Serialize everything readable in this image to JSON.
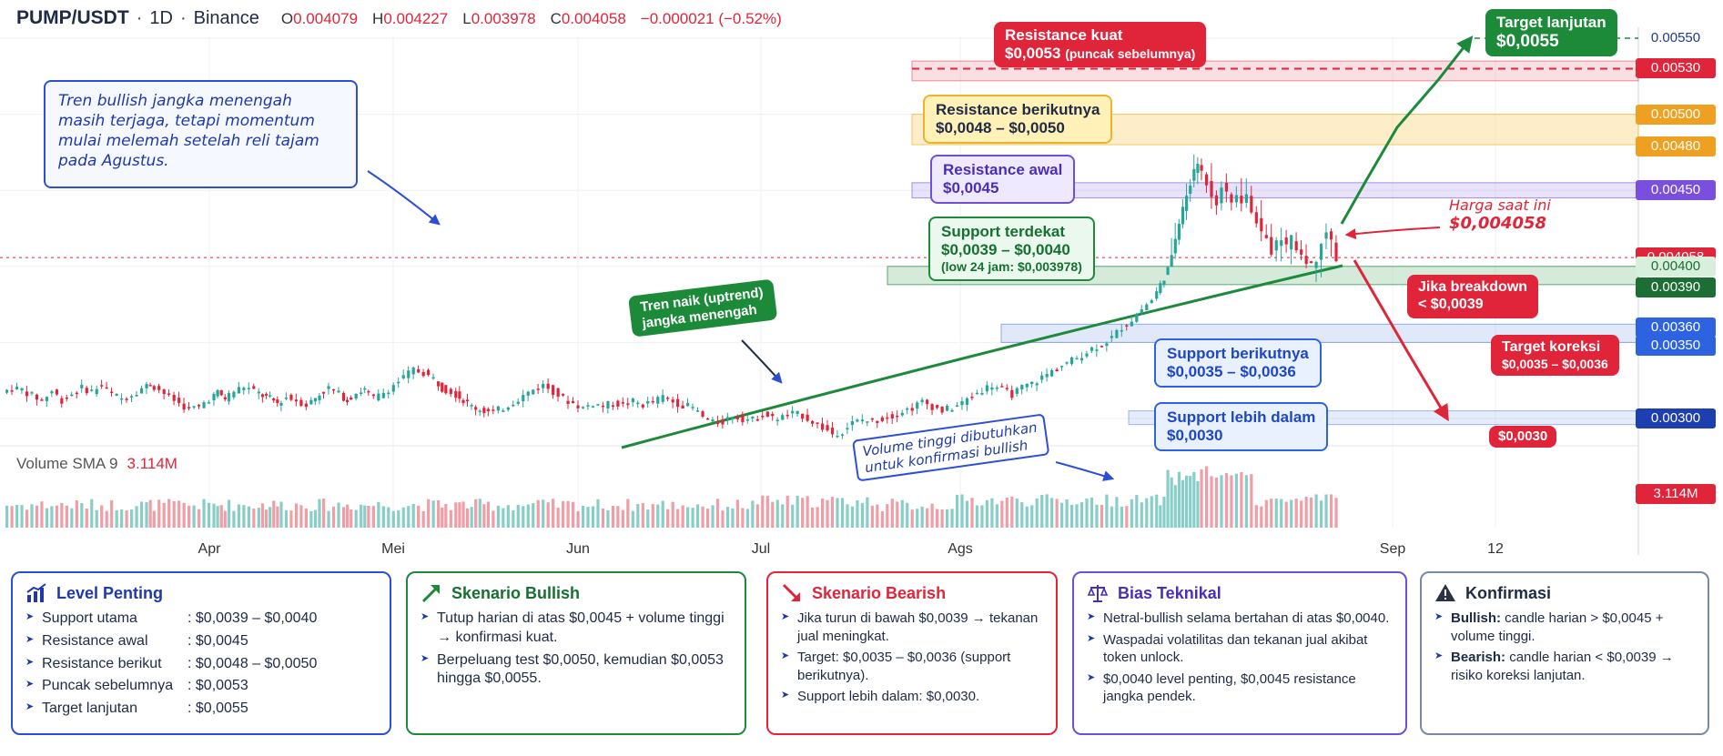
{
  "header": {
    "symbol": "PUMP/USDT",
    "interval": "1D",
    "exchange": "Binance",
    "sep": "·",
    "open_label": "O",
    "open": "0.004079",
    "high_label": "H",
    "high": "0.004227",
    "low_label": "L",
    "low": "0.003978",
    "close_label": "C",
    "close": "0.004058",
    "change": "−0.000021 (−0.52%)"
  },
  "volume": {
    "label": "Volume SMA 9",
    "value": "3.114M",
    "axis_badge": "3.114M"
  },
  "note": "Tren bullish jangka menengah masih terjaga, tetapi momentum mulai melemah setelah reli tajam pada Agustus.",
  "price_axis": {
    "labels": [
      {
        "text": "0.00550",
        "value": 0.0055,
        "style": "axis"
      },
      {
        "text": "0.00530",
        "value": 0.0053,
        "style": "red"
      },
      {
        "text": "0.00500",
        "value": 0.005,
        "style": "orange"
      },
      {
        "text": "0.00480",
        "value": 0.0048,
        "style": "orange"
      },
      {
        "text": "0.00450",
        "value": 0.0045,
        "style": "purple"
      },
      {
        "text": "0.004058",
        "value": 0.004058,
        "style": "red"
      },
      {
        "text": "0.00400",
        "value": 0.004,
        "style": "greenlight"
      },
      {
        "text": "0.00390",
        "value": 0.0039,
        "style": "green"
      },
      {
        "text": "0.00360",
        "value": 0.0036,
        "style": "blue"
      },
      {
        "text": "0.00350",
        "value": 0.0035,
        "style": "blue"
      },
      {
        "text": "0.00300",
        "value": 0.003,
        "style": "navy"
      }
    ]
  },
  "annotations": {
    "resistance_kuat": {
      "line1": "Resistance kuat",
      "line2": "$0,0053",
      "line2_small": "(puncak sebelumnya)"
    },
    "target_lanjutan": {
      "line1": "Target lanjutan",
      "line2": "$0,0055"
    },
    "resistance_berikutnya": {
      "line1": "Resistance berikutnya",
      "line2": "$0,0048 – $0,0050"
    },
    "resistance_awal": {
      "line1": "Resistance awal",
      "line2": "$0,0045"
    },
    "support_terdekat": {
      "line1": "Support terdekat",
      "line2": "$0,0039 – $0,0040",
      "line3": "(low 24 jam: $0,003978)"
    },
    "harga_saat_ini": {
      "line1": "Harga saat ini",
      "line2": "$0,004058"
    },
    "jika_breakdown": {
      "line1": "Jika breakdown",
      "line2": "< $0,0039"
    },
    "target_koreksi": {
      "line1": "Target koreksi",
      "line2": "$0,0035 – $0,0036"
    },
    "target_0030": {
      "line1": "$0,0030"
    },
    "support_berikutnya": {
      "line1": "Support berikutnya",
      "line2": "$0,0035 – $0,0036"
    },
    "support_lebih_dalam": {
      "line1": "Support lebih dalam",
      "line2": "$0,0030"
    },
    "tren_naik": {
      "line1": "Tren naik (uptrend)",
      "line2": "jangka menengah"
    },
    "volume_note": {
      "line1": "Volume tinggi dibutuhkan",
      "line2": "untuk konfirmasi bullish"
    }
  },
  "chart_data": {
    "type": "candlestick",
    "x_ticks": [
      {
        "label": "Apr",
        "x": 230
      },
      {
        "label": "Mei",
        "x": 432
      },
      {
        "label": "Jun",
        "x": 635
      },
      {
        "label": "Jul",
        "x": 836
      },
      {
        "label": "Ags",
        "x": 1055
      },
      {
        "label": "Sep",
        "x": 1530
      },
      {
        "label": "12",
        "x": 1643
      }
    ],
    "ylim": [
      0.0028,
      0.0056
    ],
    "key_levels": [
      0.0055,
      0.0053,
      0.005,
      0.0048,
      0.0045,
      0.004058,
      0.004,
      0.0039,
      0.0036,
      0.0035,
      0.003
    ],
    "close_path": [
      [
        0,
        0.00317
      ],
      [
        8,
        0.0032
      ],
      [
        16,
        0.00319
      ],
      [
        24,
        0.00315
      ],
      [
        32,
        0.00312
      ],
      [
        40,
        0.00318
      ],
      [
        48,
        0.00312
      ],
      [
        56,
        0.00316
      ],
      [
        64,
        0.0032
      ],
      [
        72,
        0.00318
      ],
      [
        80,
        0.00322
      ],
      [
        88,
        0.00316
      ],
      [
        96,
        0.00313
      ],
      [
        104,
        0.00316
      ],
      [
        112,
        0.0032
      ],
      [
        118,
        0.00323
      ],
      [
        126,
        0.00319
      ],
      [
        134,
        0.00314
      ],
      [
        142,
        0.0031
      ],
      [
        150,
        0.00306
      ],
      [
        158,
        0.00308
      ],
      [
        166,
        0.00313
      ],
      [
        172,
        0.00317
      ],
      [
        178,
        0.00313
      ],
      [
        186,
        0.00318
      ],
      [
        194,
        0.00321
      ],
      [
        202,
        0.00318
      ],
      [
        208,
        0.00315
      ],
      [
        214,
        0.00313
      ],
      [
        220,
        0.0031
      ],
      [
        228,
        0.00314
      ],
      [
        236,
        0.00312
      ],
      [
        244,
        0.00309
      ],
      [
        254,
        0.00316
      ],
      [
        262,
        0.0032
      ],
      [
        270,
        0.00316
      ],
      [
        276,
        0.00312
      ],
      [
        284,
        0.00317
      ],
      [
        290,
        0.00319
      ],
      [
        298,
        0.00313
      ],
      [
        306,
        0.00317
      ],
      [
        314,
        0.00322
      ],
      [
        322,
        0.00327
      ],
      [
        330,
        0.00332
      ],
      [
        338,
        0.0033
      ],
      [
        346,
        0.00326
      ],
      [
        352,
        0.0032
      ],
      [
        360,
        0.00318
      ],
      [
        366,
        0.00314
      ],
      [
        376,
        0.00308
      ],
      [
        386,
        0.00305
      ],
      [
        394,
        0.00304
      ],
      [
        402,
        0.00307
      ],
      [
        410,
        0.00311
      ],
      [
        418,
        0.00315
      ],
      [
        426,
        0.00319
      ],
      [
        434,
        0.00322
      ],
      [
        442,
        0.00318
      ],
      [
        450,
        0.00313
      ],
      [
        458,
        0.0031
      ],
      [
        466,
        0.00307
      ],
      [
        474,
        0.0031
      ],
      [
        482,
        0.00308
      ],
      [
        490,
        0.0031
      ],
      [
        498,
        0.00309
      ],
      [
        506,
        0.00311
      ],
      [
        514,
        0.00309
      ],
      [
        522,
        0.00311
      ],
      [
        530,
        0.00314
      ],
      [
        538,
        0.00311
      ],
      [
        546,
        0.00309
      ],
      [
        554,
        0.00307
      ],
      [
        562,
        0.00301
      ],
      [
        570,
        0.00297
      ],
      [
        578,
        0.00298
      ],
      [
        586,
        0.00302
      ],
      [
        594,
        0.003
      ],
      [
        602,
        0.00299
      ],
      [
        610,
        0.00303
      ],
      [
        618,
        0.003
      ],
      [
        626,
        0.00301
      ],
      [
        634,
        0.00303
      ],
      [
        642,
        0.00302
      ],
      [
        650,
        0.00298
      ],
      [
        658,
        0.00294
      ],
      [
        666,
        0.0029
      ],
      [
        674,
        0.00292
      ],
      [
        682,
        0.00297
      ],
      [
        690,
        0.00299
      ],
      [
        698,
        0.00298
      ],
      [
        706,
        0.003
      ],
      [
        714,
        0.00302
      ],
      [
        722,
        0.00305
      ],
      [
        730,
        0.00307
      ],
      [
        738,
        0.00311
      ],
      [
        746,
        0.00308
      ],
      [
        754,
        0.00305
      ],
      [
        762,
        0.00307
      ],
      [
        770,
        0.0031
      ],
      [
        778,
        0.00315
      ],
      [
        786,
        0.00319
      ],
      [
        794,
        0.00322
      ],
      [
        802,
        0.00319
      ],
      [
        810,
        0.00316
      ],
      [
        818,
        0.0032
      ],
      [
        826,
        0.00323
      ],
      [
        834,
        0.00327
      ],
      [
        842,
        0.00331
      ],
      [
        850,
        0.00335
      ],
      [
        858,
        0.00338
      ],
      [
        866,
        0.00342
      ],
      [
        874,
        0.00346
      ],
      [
        882,
        0.00349
      ],
      [
        890,
        0.00353
      ],
      [
        898,
        0.0036
      ],
      [
        906,
        0.00365
      ],
      [
        914,
        0.00372
      ],
      [
        922,
        0.00378
      ],
      [
        928,
        0.00388
      ],
      [
        934,
        0.00398
      ],
      [
        940,
        0.00418
      ],
      [
        946,
        0.00438
      ],
      [
        952,
        0.00455
      ],
      [
        958,
        0.00468
      ],
      [
        962,
        0.00462
      ],
      [
        966,
        0.00455
      ],
      [
        970,
        0.00447
      ],
      [
        974,
        0.00442
      ],
      [
        978,
        0.00453
      ],
      [
        982,
        0.00447
      ],
      [
        986,
        0.00442
      ],
      [
        990,
        0.00448
      ],
      [
        994,
        0.00441
      ],
      [
        998,
        0.00446
      ],
      [
        1002,
        0.00437
      ],
      [
        1006,
        0.0043
      ],
      [
        1010,
        0.00422
      ],
      [
        1014,
        0.00418
      ],
      [
        1018,
        0.0041
      ],
      [
        1022,
        0.00415
      ],
      [
        1026,
        0.00419
      ],
      [
        1030,
        0.00413
      ],
      [
        1034,
        0.00418
      ],
      [
        1038,
        0.00412
      ],
      [
        1042,
        0.00408
      ],
      [
        1046,
        0.00404
      ],
      [
        1050,
        0.004
      ],
      [
        1054,
        0.00405
      ],
      [
        1058,
        0.00417
      ],
      [
        1062,
        0.00423
      ],
      [
        1066,
        0.00416
      ],
      [
        1070,
        0.00405
      ]
    ]
  },
  "panels": {
    "level_penting": {
      "title": "Level Penting",
      "rows": [
        {
          "k": "Support utama",
          "v": ": $0,0039 – $0,0040"
        },
        {
          "k": "Resistance awal",
          "v": ": $0,0045"
        },
        {
          "k": "Resistance berikut",
          "v": ": $0,0048 – $0,0050"
        },
        {
          "k": "Puncak sebelumnya",
          "v": ": $0,0053"
        },
        {
          "k": "Target lanjutan",
          "v": ": $0,0055"
        }
      ]
    },
    "bullish": {
      "title": "Skenario Bullish",
      "items": [
        "Tutup harian di atas $0,0045 + volume tinggi → konfirmasi kuat.",
        "Berpeluang test $0,0050, kemudian $0,0053 hingga $0,0055."
      ]
    },
    "bearish": {
      "title": "Skenario Bearish",
      "items": [
        "Jika turun di bawah $0,0039 → tekanan jual meningkat.",
        "Target: $0,0035 – $0,0036 (support berikutnya).",
        "Support lebih dalam: $0,0030."
      ]
    },
    "bias": {
      "title": "Bias Teknikal",
      "items": [
        "Netral-bullish selama bertahan di atas $0,0040.",
        "Waspadai volatilitas dan tekanan jual akibat token unlock.",
        "$0,0040 level penting, $0,0045 resistance jangka pendek."
      ]
    },
    "konfirmasi": {
      "title": "Konfirmasi",
      "bull_label": "Bullish:",
      "bull_text": " candle harian > $0,0045 + volume tinggi.",
      "bear_label": "Bearish:",
      "bear_text": " candle harian < $0,0039 → risiko koreksi lanjutan."
    }
  },
  "colors": {
    "up": "#26a69a",
    "down": "#e0253a",
    "accent_blue": "#1f3aa8",
    "green": "#1d8a3a",
    "red": "#e0253a"
  }
}
